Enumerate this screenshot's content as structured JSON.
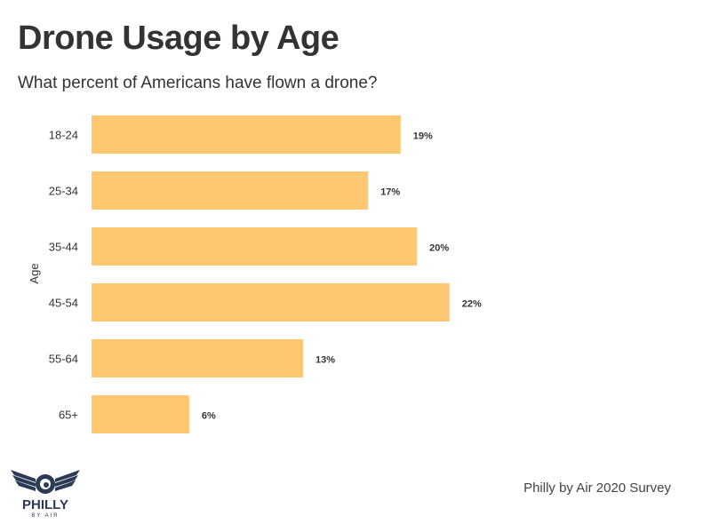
{
  "header": {
    "title": "Drone Usage by Age",
    "subtitle": "What percent of Americans have flown a drone?"
  },
  "footer": {
    "source": "Philly by Air 2020 Survey",
    "logo_text": "PHILLY",
    "logo_subtext": "BY AIR"
  },
  "colors": {
    "bar": "#FFC76F",
    "text": "#333333",
    "logo": "#2B3A55"
  },
  "chart_data": {
    "type": "bar",
    "orientation": "horizontal",
    "title": "Drone Usage by Age",
    "subtitle": "What percent of Americans have flown a drone?",
    "ylabel": "Age",
    "xlabel": "",
    "categories": [
      "18-24",
      "25-34",
      "35-44",
      "45-54",
      "55-64",
      "65+"
    ],
    "values": [
      19,
      17,
      20,
      22,
      13,
      6
    ],
    "value_labels": [
      "19%",
      "17%",
      "20%",
      "22%",
      "13%",
      "6%"
    ],
    "xlim": [
      0,
      36
    ],
    "grid": false,
    "legend": "none"
  }
}
